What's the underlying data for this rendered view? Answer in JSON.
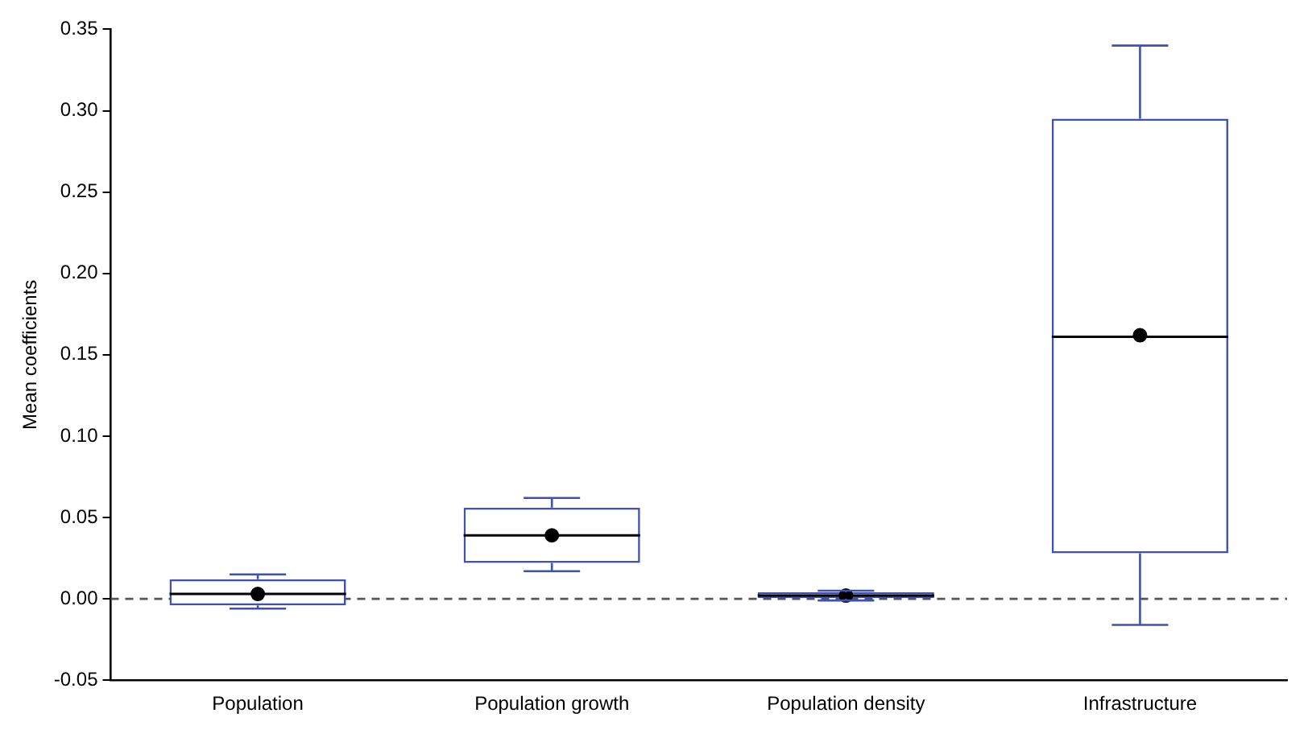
{
  "chart_data": {
    "type": "box",
    "ylabel": "Mean coefficients",
    "categories": [
      "Population",
      "Population growth",
      "Population density",
      "Infrastructure"
    ],
    "color": "#3f51b5",
    "boxes": [
      {
        "low": -0.006,
        "q1": -0.004,
        "median": 0.003,
        "q3": 0.012,
        "high": 0.015,
        "mean": 0.003
      },
      {
        "low": 0.017,
        "q1": 0.022,
        "median": 0.039,
        "q3": 0.056,
        "high": 0.062,
        "mean": 0.039
      },
      {
        "low": -0.001,
        "q1": 0,
        "median": 0.002,
        "q3": 0.004,
        "high": 0.005,
        "mean": 0.002
      },
      {
        "low": -0.016,
        "q1": 0.028,
        "median": 0.161,
        "q3": 0.295,
        "high": 0.34,
        "mean": 0.162
      }
    ],
    "ylim": [
      -0.05,
      0.35
    ],
    "yticks": [
      {
        "value": -0.05,
        "label": "-0.05"
      },
      {
        "value": 0,
        "label": "0.00"
      },
      {
        "value": 0.05,
        "label": "0.05"
      },
      {
        "value": 0.1,
        "label": "0.10"
      },
      {
        "value": 0.15,
        "label": "0.15"
      },
      {
        "value": 0.2,
        "label": "0.20"
      },
      {
        "value": 0.25,
        "label": "0.25"
      },
      {
        "value": 0.3,
        "label": "0.30"
      },
      {
        "value": 0.35,
        "label": "0.35"
      }
    ],
    "ref_lines": [
      {
        "axis": "y",
        "value": 0,
        "color": "#555555",
        "line_style": "dashed"
      }
    ],
    "grid": false,
    "legend": false
  }
}
